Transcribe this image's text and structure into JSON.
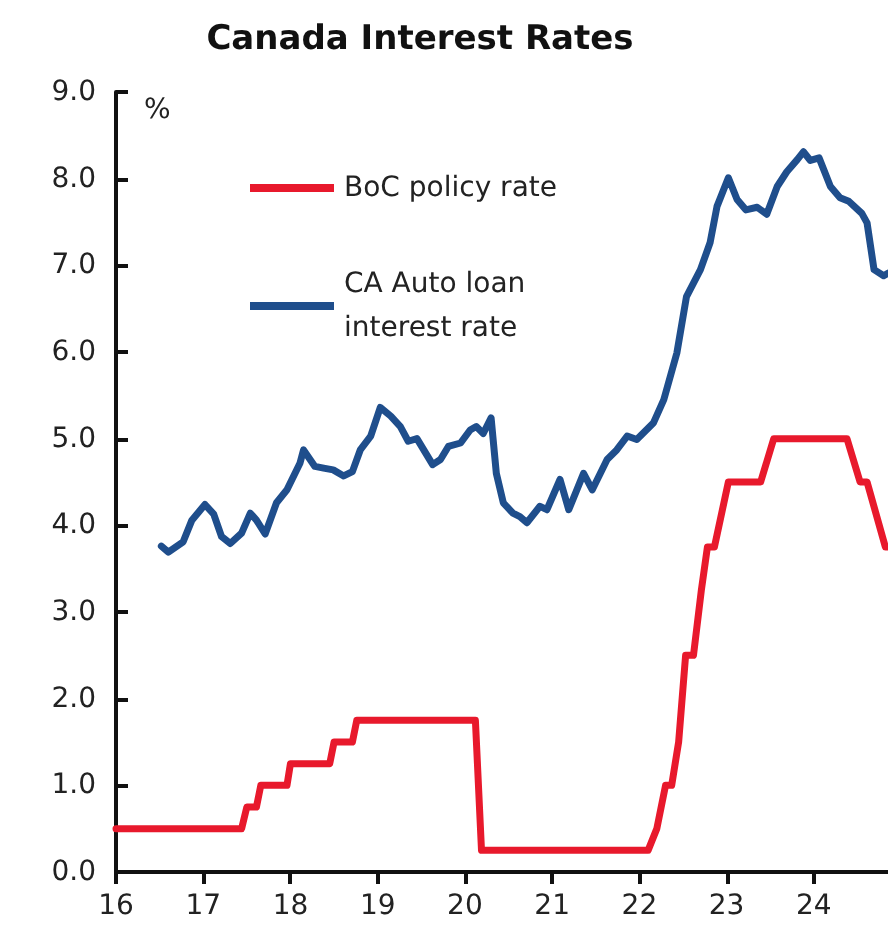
{
  "chart_data": {
    "type": "line",
    "title": "Canada Interest Rates",
    "ylabel": "%",
    "xlim": [
      16,
      24.85
    ],
    "xticks": [
      16,
      17,
      18,
      19,
      20,
      21,
      22,
      23,
      24
    ],
    "ylim": [
      0,
      9
    ],
    "yticks": [
      {
        "value": 0,
        "label": "0.0"
      },
      {
        "value": 1,
        "label": "1.0"
      },
      {
        "value": 2,
        "label": "2.0"
      },
      {
        "value": 3,
        "label": "3.0"
      },
      {
        "value": 4,
        "label": "4.0"
      },
      {
        "value": 5,
        "label": "5.0"
      },
      {
        "value": 6,
        "label": "6.0"
      },
      {
        "value": 7,
        "label": "7.0"
      },
      {
        "value": 8,
        "label": "8.0"
      },
      {
        "value": 9,
        "label": "9.0"
      }
    ],
    "grid": false,
    "legend": "top left",
    "marker": "none",
    "line_style": "solid",
    "series": [
      {
        "name": "BoC policy rate",
        "color": "#e8192c",
        "x": [
          16,
          17.44,
          17.5,
          17.61,
          17.66,
          17.96,
          18.0,
          18.45,
          18.5,
          18.71,
          18.76,
          20.12,
          20.19,
          22.1,
          22.2,
          22.3,
          22.37,
          22.45,
          22.53,
          22.62,
          22.71,
          22.78,
          22.86,
          23.02,
          23.39,
          23.54,
          24.38,
          24.53,
          24.61,
          24.82,
          24.85
        ],
        "values": [
          0.5,
          0.5,
          0.75,
          0.75,
          1.0,
          1.0,
          1.25,
          1.25,
          1.5,
          1.5,
          1.75,
          1.75,
          0.25,
          0.25,
          0.5,
          1.0,
          1.0,
          1.5,
          2.5,
          2.5,
          3.25,
          3.75,
          3.75,
          4.5,
          4.5,
          5.0,
          5.0,
          4.5,
          4.5,
          3.75,
          3.75
        ]
      },
      {
        "name": "CA Auto loan interest rate",
        "color": "#1f4e8c",
        "x": [
          16.52,
          16.6,
          16.77,
          16.87,
          17.02,
          17.12,
          17.21,
          17.31,
          17.44,
          17.54,
          17.61,
          17.71,
          17.84,
          17.96,
          18.11,
          18.15,
          18.28,
          18.38,
          18.49,
          18.61,
          18.71,
          18.8,
          18.92,
          19.03,
          19.15,
          19.26,
          19.35,
          19.45,
          19.63,
          19.72,
          19.81,
          19.95,
          20.06,
          20.13,
          20.21,
          20.3,
          20.36,
          20.44,
          20.55,
          20.63,
          20.71,
          20.86,
          20.94,
          21.09,
          21.19,
          21.36,
          21.46,
          21.63,
          21.74,
          21.86,
          21.97,
          22.16,
          22.28,
          22.43,
          22.54,
          22.7,
          22.81,
          22.89,
          23.02,
          23.12,
          23.22,
          23.35,
          23.46,
          23.58,
          23.69,
          23.81,
          23.88,
          23.96,
          24.06,
          24.19,
          24.3,
          24.4,
          24.55,
          24.61,
          24.69,
          24.8,
          24.85
        ],
        "values": [
          3.76,
          3.69,
          3.81,
          4.06,
          4.24,
          4.13,
          3.87,
          3.79,
          3.91,
          4.14,
          4.06,
          3.9,
          4.26,
          4.41,
          4.72,
          4.87,
          4.68,
          4.66,
          4.64,
          4.57,
          4.62,
          4.87,
          5.03,
          5.36,
          5.26,
          5.14,
          4.97,
          5.0,
          4.7,
          4.76,
          4.91,
          4.95,
          5.1,
          5.14,
          5.06,
          5.24,
          4.6,
          4.26,
          4.14,
          4.1,
          4.03,
          4.22,
          4.18,
          4.53,
          4.18,
          4.6,
          4.41,
          4.76,
          4.87,
          5.03,
          4.99,
          5.18,
          5.45,
          5.99,
          6.64,
          6.95,
          7.26,
          7.68,
          8.01,
          7.76,
          7.64,
          7.67,
          7.59,
          7.91,
          8.08,
          8.22,
          8.31,
          8.21,
          8.24,
          7.91,
          7.78,
          7.74,
          7.6,
          7.49,
          6.95,
          6.88,
          6.91
        ]
      }
    ]
  }
}
